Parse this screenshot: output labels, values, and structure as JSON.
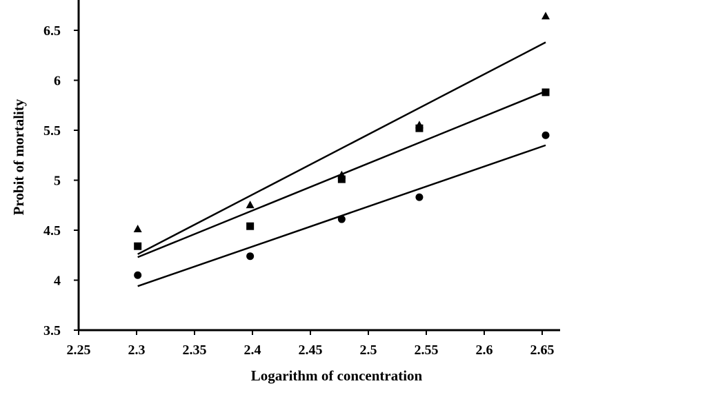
{
  "chart_data": {
    "type": "scatter",
    "title": "",
    "xlabel": "Logarithm of concentration",
    "ylabel": "Probit of mortality",
    "xlim": [
      2.25,
      2.65
    ],
    "ylim": [
      3.5,
      6.5
    ],
    "x_ticks": [
      "2.25",
      "2.3",
      "2.35",
      "2.4",
      "2.45",
      "2.5",
      "2.55",
      "2.6",
      "2.65"
    ],
    "y_ticks": [
      "3.5",
      "4",
      "4.5",
      "5",
      "5.5",
      "6",
      "6.5"
    ],
    "grid": false,
    "legend": "none",
    "series": [
      {
        "marker": "triangle",
        "x": [
          2.301,
          2.398,
          2.477,
          2.544,
          2.653
        ],
        "y": [
          4.51,
          4.75,
          5.05,
          5.55,
          6.64
        ],
        "fit": {
          "x": [
            2.301,
            2.653
          ],
          "y": [
            4.26,
            6.38
          ]
        }
      },
      {
        "marker": "square",
        "x": [
          2.301,
          2.398,
          2.477,
          2.544,
          2.653
        ],
        "y": [
          4.34,
          4.54,
          5.01,
          5.52,
          5.88
        ],
        "fit": {
          "x": [
            2.301,
            2.653
          ],
          "y": [
            4.23,
            5.89
          ]
        }
      },
      {
        "marker": "circle",
        "x": [
          2.301,
          2.398,
          2.477,
          2.544,
          2.653
        ],
        "y": [
          4.05,
          4.24,
          4.61,
          4.83,
          5.45
        ],
        "fit": {
          "x": [
            2.301,
            2.653
          ],
          "y": [
            3.94,
            5.35
          ]
        }
      }
    ],
    "colors": {
      "ink": "#000000",
      "background": "#ffffff"
    }
  }
}
